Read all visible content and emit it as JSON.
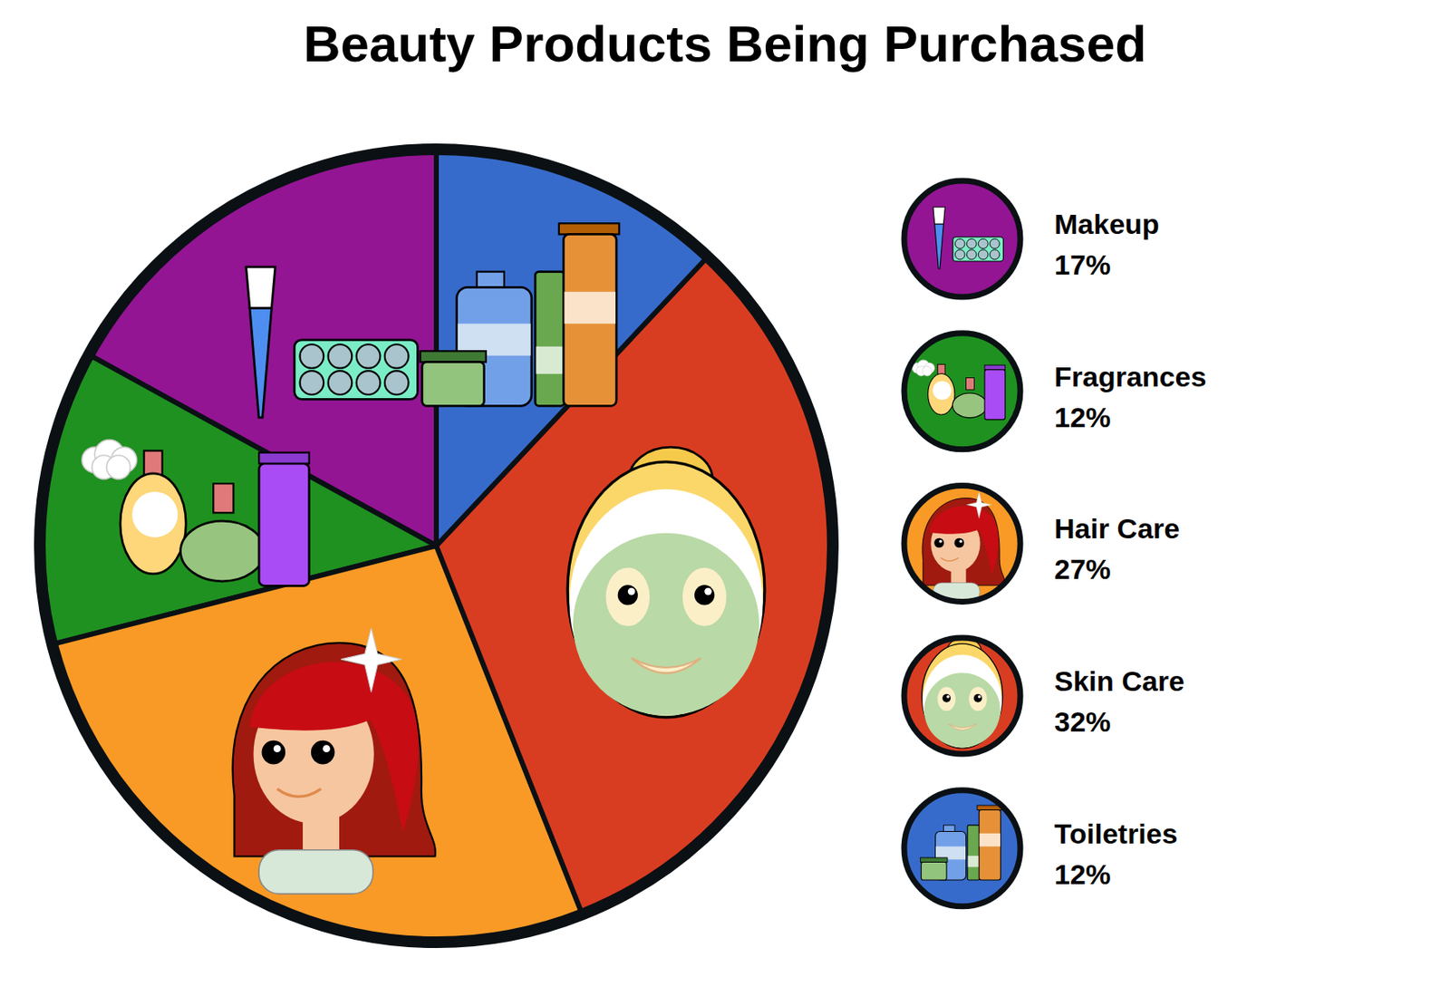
{
  "chart_data": {
    "type": "pie",
    "title": "Beauty Products Being Purchased",
    "categories": [
      "Makeup",
      "Fragrances",
      "Hair Care",
      "Skin Care",
      "Toiletries"
    ],
    "values": [
      17,
      12,
      27,
      32,
      12
    ],
    "value_labels": [
      "17%",
      "12%",
      "27%",
      "32%",
      "12%"
    ],
    "colors": [
      "#931593",
      "#1f9120",
      "#f99a26",
      "#d93d21",
      "#376bcb"
    ],
    "legend": "right"
  }
}
